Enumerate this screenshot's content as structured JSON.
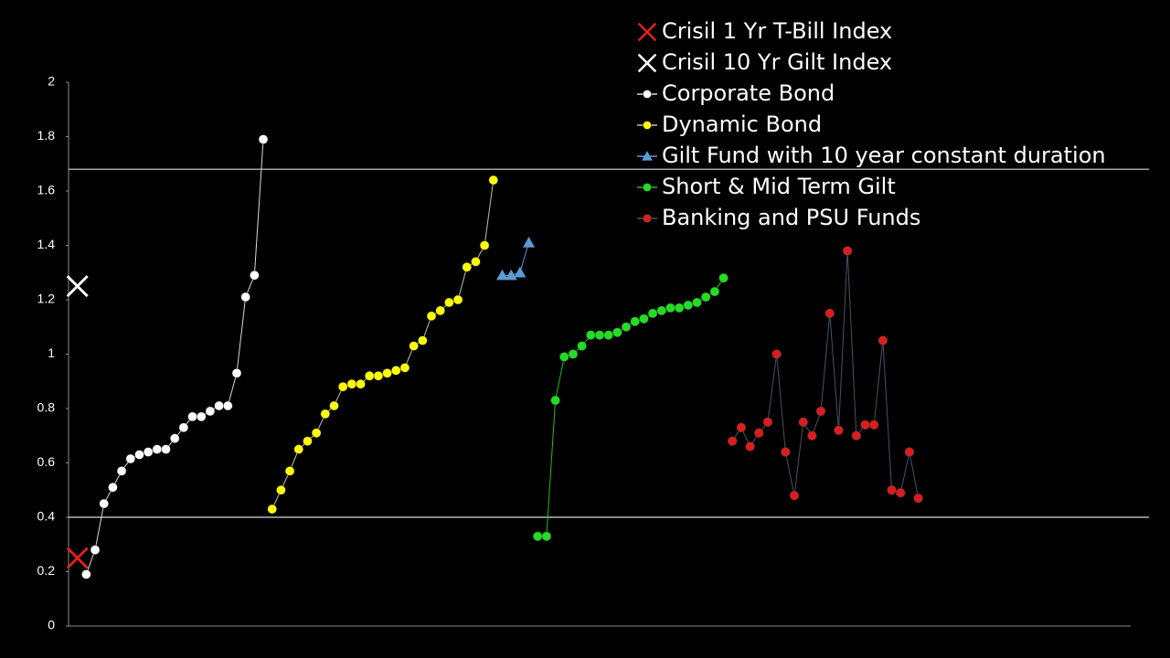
{
  "chart_data": {
    "type": "scatter",
    "xlim": [
      0,
      120
    ],
    "ylim": [
      0,
      2
    ],
    "yticks": [
      0,
      0.2,
      0.4,
      0.6,
      0.8,
      1,
      1.2,
      1.4,
      1.6,
      1.8,
      2
    ],
    "hlines": [
      1.68,
      0.4
    ],
    "legend": "upper right",
    "series": [
      {
        "name": "Crisil 1 Yr T-Bill Index",
        "color": "#e02020",
        "marker": "x",
        "x": [
          1
        ],
        "values": [
          0.25
        ]
      },
      {
        "name": "Crisil 10 Yr Gilt Index",
        "color": "#ffffff",
        "marker": "x",
        "x": [
          1
        ],
        "values": [
          1.25
        ]
      },
      {
        "name": "Corporate Bond",
        "color": "#ffffff",
        "line_color": "#d9d9d9",
        "marker": "circle",
        "x": [
          2,
          3,
          4,
          5,
          6,
          7,
          8,
          9,
          10,
          11,
          12,
          13,
          14,
          15,
          16,
          17,
          18,
          19,
          20,
          21,
          22
        ],
        "values": [
          0.19,
          0.28,
          0.45,
          0.51,
          0.57,
          0.615,
          0.63,
          0.64,
          0.65,
          0.65,
          0.69,
          0.73,
          0.77,
          0.77,
          0.79,
          0.81,
          0.81,
          0.93,
          1.21,
          1.29,
          1.79
        ]
      },
      {
        "name": "Dynamic Bond",
        "color": "#ffff00",
        "line_color": "#bfbfbf",
        "marker": "circle",
        "x": [
          23,
          24,
          25,
          26,
          27,
          28,
          29,
          30,
          31,
          32,
          33,
          34,
          35,
          36,
          37,
          38,
          39,
          40,
          41,
          42,
          43,
          44,
          45,
          46,
          47,
          48
        ],
        "values": [
          0.43,
          0.5,
          0.57,
          0.65,
          0.68,
          0.71,
          0.78,
          0.81,
          0.88,
          0.89,
          0.89,
          0.92,
          0.92,
          0.93,
          0.94,
          0.95,
          1.03,
          1.05,
          1.14,
          1.16,
          1.19,
          1.2,
          1.32,
          1.34,
          1.4,
          1.64
        ]
      },
      {
        "name": "Gilt Fund with 10 year constant duration",
        "color": "#5b9bd5",
        "line_color": "#5b9bd5",
        "marker": "triangle",
        "x": [
          49,
          50,
          51,
          52
        ],
        "values": [
          1.29,
          1.29,
          1.3,
          1.41
        ]
      },
      {
        "name": "Short & Mid Term Gilt",
        "color": "#22dd22",
        "line_color": "#22bb22",
        "marker": "circle",
        "x": [
          53,
          54,
          55,
          56,
          57,
          58,
          59,
          60,
          61,
          62,
          63,
          64,
          65,
          66,
          67,
          68,
          69,
          70,
          71,
          72,
          73,
          74
        ],
        "values": [
          0.33,
          0.33,
          0.83,
          0.99,
          1.0,
          1.03,
          1.07,
          1.07,
          1.07,
          1.08,
          1.1,
          1.12,
          1.13,
          1.15,
          1.16,
          1.17,
          1.17,
          1.18,
          1.19,
          1.21,
          1.23,
          1.28
        ]
      },
      {
        "name": "Banking and PSU Funds",
        "color": "#d81e1e",
        "line_color": "#44546a",
        "marker": "circle",
        "x": [
          75,
          76,
          77,
          78,
          79,
          80,
          81,
          82,
          83,
          84,
          85,
          86,
          87,
          88,
          89,
          90,
          91,
          92,
          93,
          94,
          95,
          96
        ],
        "values": [
          0.68,
          0.73,
          0.66,
          0.71,
          0.75,
          1.0,
          0.64,
          0.48,
          0.75,
          0.7,
          0.79,
          1.15,
          0.72,
          1.38,
          0.7,
          0.74,
          0.74,
          1.05,
          0.5,
          0.49,
          0.64,
          0.47
        ]
      }
    ]
  }
}
